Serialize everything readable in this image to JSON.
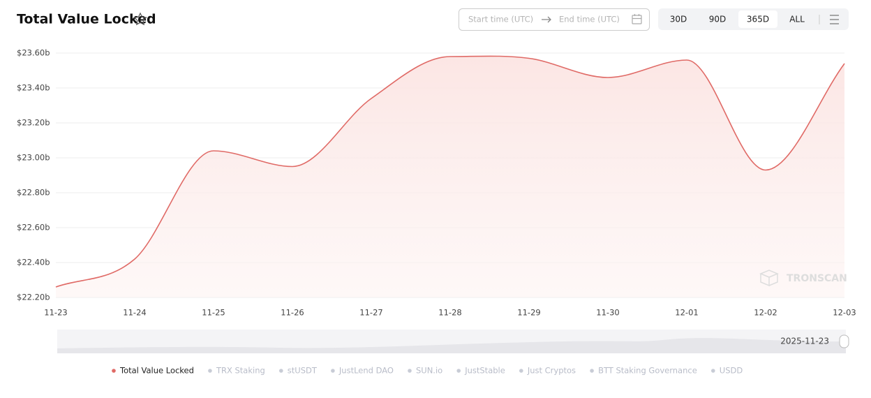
{
  "chart_data": {
    "type": "line",
    "title": "Total Value Locked",
    "categories": [
      "11-23",
      "11-24",
      "11-25",
      "11-26",
      "11-27",
      "11-28",
      "11-29",
      "11-30",
      "12-01",
      "12-02",
      "12-03"
    ],
    "series": [
      {
        "name": "Total Value Locked",
        "color": "#e06a66",
        "values": [
          22.26,
          22.42,
          23.04,
          22.95,
          23.34,
          23.58,
          23.57,
          23.46,
          23.56,
          22.93,
          23.54
        ]
      }
    ],
    "inactive_series": [
      "TRX Staking",
      "stUSDT",
      "JustLend DAO",
      "SUN.io",
      "JustStable",
      "Just Cryptos",
      "BTT Staking Governance",
      "USDD"
    ],
    "ylim": [
      22.2,
      23.6
    ],
    "yticks": [
      {
        "value": 22.2,
        "label": "$22.20b"
      },
      {
        "value": 22.4,
        "label": "$22.40b"
      },
      {
        "value": 22.6,
        "label": "$22.60b"
      },
      {
        "value": 22.8,
        "label": "$22.80b"
      },
      {
        "value": 23.0,
        "label": "$23.00b"
      },
      {
        "value": 23.2,
        "label": "$23.20b"
      },
      {
        "value": 23.4,
        "label": "$23.40b"
      },
      {
        "value": 23.6,
        "label": "$23.60b"
      }
    ],
    "grid": true,
    "watermark": "TRONSCAN",
    "navigator_label": "2025-11-23"
  },
  "controls": {
    "start_placeholder": "Start time (UTC)",
    "end_placeholder": "End time (UTC)",
    "ranges": [
      "30D",
      "90D",
      "365D",
      "ALL"
    ],
    "active_range": 2
  }
}
